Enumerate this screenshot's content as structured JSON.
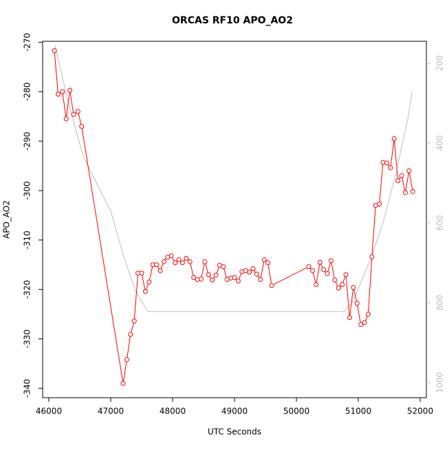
{
  "chart_data": {
    "type": "line",
    "title": "ORCAS RF10 APO_AO2",
    "xlabel": "UTC Seconds",
    "ylabel": "APO_AO2",
    "xlim": [
      45900,
      52100
    ],
    "xticks": [
      46000,
      47000,
      48000,
      49000,
      50000,
      51000,
      52000
    ],
    "ylim": [
      -341.9,
      -269.8
    ],
    "yticks": [
      -340,
      -330,
      -320,
      -310,
      -300,
      -290,
      -280,
      -270
    ],
    "y2lim": [
      1038,
      145
    ],
    "y2ticks": [
      200,
      400,
      600,
      800,
      1000
    ],
    "y2color": "#bebebe",
    "series": [
      {
        "color": "#ff0000",
        "markers": true,
        "x": [
          46090,
          46150,
          46220,
          46280,
          46340,
          46400,
          46470,
          46530,
          47200,
          47260,
          47320,
          47380,
          47440,
          47500,
          47560,
          47620,
          47680,
          47740,
          47800,
          47860,
          47920,
          47980,
          48040,
          48100,
          48160,
          48220,
          48280,
          48340,
          48400,
          48460,
          48520,
          48580,
          48640,
          48700,
          48760,
          48820,
          48880,
          48940,
          49000,
          49060,
          49120,
          49180,
          49240,
          49300,
          49360,
          49420,
          49480,
          49540,
          49600,
          50200,
          50260,
          50320,
          50380,
          50440,
          50500,
          50560,
          50620,
          50680,
          50740,
          50800,
          50860,
          50920,
          50980,
          51040,
          51100,
          51160,
          51220,
          51280,
          51340,
          51400,
          51460,
          51520,
          51580,
          51640,
          51700,
          51760,
          51820,
          51880
        ],
        "values": [
          -271.7,
          -280.5,
          -280.0,
          -285.5,
          -279.7,
          -284.6,
          -284.0,
          -287.0,
          -339.0,
          -334.2,
          -329.1,
          -326.4,
          -316.7,
          -316.7,
          -320.4,
          -318.5,
          -315.0,
          -315.0,
          -316.2,
          -314.4,
          -313.5,
          -313.2,
          -314.6,
          -314.0,
          -314.6,
          -313.7,
          -314.4,
          -317.6,
          -318.0,
          -317.9,
          -314.4,
          -317.0,
          -318.1,
          -317.1,
          -315.1,
          -315.4,
          -318.0,
          -317.7,
          -317.6,
          -318.3,
          -316.4,
          -316.2,
          -316.5,
          -315.8,
          -316.9,
          -318.0,
          -314.0,
          -314.6,
          -319.2,
          -315.4,
          -316.2,
          -319.0,
          -314.5,
          -316.0,
          -316.8,
          -314.2,
          -318.1,
          -319.7,
          -319.0,
          -317.0,
          -325.7,
          -319.6,
          -322.8,
          -327.1,
          -326.7,
          -325.0,
          -313.4,
          -303.0,
          -302.7,
          -294.3,
          -294.4,
          -295.4,
          -289.5,
          -298.0,
          -297.0,
          -300.4,
          -296.0,
          -300.2
        ]
      },
      {
        "color": "#bebebe",
        "axis": "y2",
        "markers": false,
        "x": [
          46100,
          46300,
          46550,
          46800,
          47000,
          47200,
          47400,
          47600,
          50770,
          50900,
          51000,
          51200,
          51400,
          51600,
          51800,
          51870
        ],
        "values": [
          155,
          290,
          430,
          510,
          570,
          680,
          770,
          822,
          822,
          800,
          765,
          690,
          600,
          480,
          340,
          270
        ]
      }
    ]
  }
}
